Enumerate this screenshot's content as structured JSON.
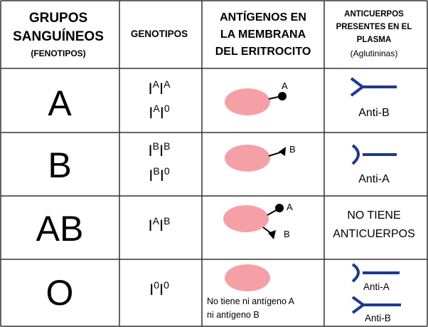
{
  "colors": {
    "border": "#333333",
    "cell": "#f5a0a6",
    "antibody": "#1f3a8c",
    "antigen": "#000000",
    "text": "#000000"
  },
  "headers": {
    "col1": [
      "GRUPOS",
      "SANGUÍNEOS"
    ],
    "col1_sub": "(FENOTIPOS)",
    "col2": "GENOTIPOS",
    "col3": [
      "ANTÍGENOS EN",
      "LA MEMBRANA",
      "DEL ERITROCITO"
    ],
    "col4": [
      "ANTICUERPOS",
      "PRESENTES EN EL",
      "PLASMA"
    ],
    "col4_sub": "(Aglutininas)"
  },
  "rows": [
    {
      "group": "A",
      "genotypes": [
        [
          "I",
          "A",
          "I",
          "A"
        ],
        [
          "I",
          "A",
          "I",
          "0"
        ]
      ],
      "antigens": [
        {
          "label": "A",
          "shape": "circle"
        }
      ],
      "antibodies": [
        {
          "label": "Anti-B",
          "shape": "y-fork"
        }
      ]
    },
    {
      "group": "B",
      "genotypes": [
        [
          "I",
          "B",
          "I",
          "B"
        ],
        [
          "I",
          "B",
          "I",
          "0"
        ]
      ],
      "antigens": [
        {
          "label": "B",
          "shape": "triangle"
        }
      ],
      "antibodies": [
        {
          "label": "Anti-A",
          "shape": "cup"
        }
      ]
    },
    {
      "group": "AB",
      "genotypes": [
        [
          "I",
          "A",
          "I",
          "B"
        ]
      ],
      "antigens": [
        {
          "label": "A",
          "shape": "circle"
        },
        {
          "label": "B",
          "shape": "triangle"
        }
      ],
      "antibodies_text": [
        "NO TIENE",
        "ANTICUERPOS"
      ]
    },
    {
      "group": "O",
      "genotypes": [
        [
          "I",
          "0",
          "I",
          "0"
        ]
      ],
      "antigens_text": [
        "No tiene ni antígeno A",
        "ni antígeno B"
      ],
      "antibodies": [
        {
          "label": "Anti-A",
          "shape": "cup"
        },
        {
          "label": "Anti-B",
          "shape": "y-fork"
        }
      ]
    }
  ]
}
